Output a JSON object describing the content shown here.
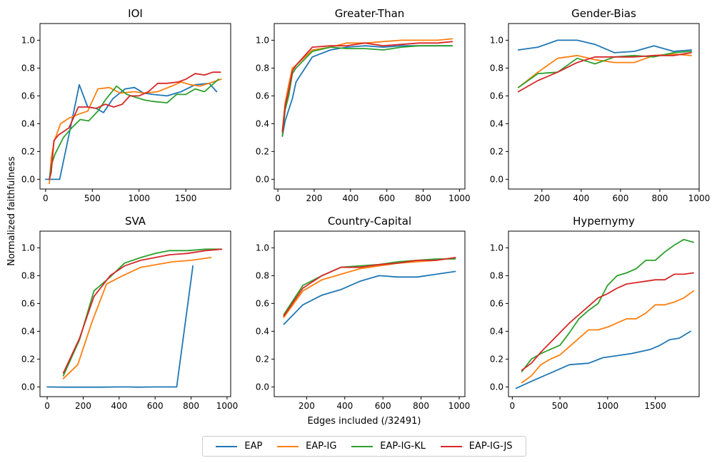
{
  "figure": {
    "ylabel": "Normalized faithfulness",
    "xlabel": "Edges included (/32491)"
  },
  "colors": {
    "EAP": "#1f77b4",
    "EAP-IG": "#ff7f0e",
    "EAP-IG-KL": "#2ca02c",
    "EAP-IG-JS": "#d62728"
  },
  "legend": [
    {
      "name": "EAP",
      "color": "#1f77b4"
    },
    {
      "name": "EAP-IG",
      "color": "#ff7f0e"
    },
    {
      "name": "EAP-IG-KL",
      "color": "#2ca02c"
    },
    {
      "name": "EAP-IG-JS",
      "color": "#d62728"
    }
  ],
  "chart_data": [
    {
      "type": "line",
      "title": "IOI",
      "xlim": [
        -60,
        1980
      ],
      "ylim": [
        -0.07,
        1.12
      ],
      "xticks": [
        0,
        500,
        1000,
        1500
      ],
      "yticks": [
        0.0,
        0.2,
        0.4,
        0.6,
        0.8,
        1.0
      ],
      "xticklabels": [
        "0",
        "500",
        "1000",
        "1500"
      ],
      "yticklabels": [
        "0.0",
        "0.2",
        "0.4",
        "0.6",
        "0.8",
        "1.0"
      ],
      "series": [
        {
          "name": "EAP",
          "x": [
            0,
            40,
            80,
            150,
            250,
            360,
            450,
            540,
            620,
            720,
            850,
            950,
            1050,
            1150,
            1300,
            1450,
            1600,
            1750,
            1830
          ],
          "y": [
            0.0,
            0.0,
            0.0,
            0.0,
            0.32,
            0.68,
            0.52,
            0.51,
            0.48,
            0.58,
            0.65,
            0.66,
            0.62,
            0.61,
            0.6,
            0.63,
            0.68,
            0.69,
            0.63
          ]
        },
        {
          "name": "EAP-IG",
          "x": [
            40,
            60,
            90,
            160,
            250,
            360,
            450,
            560,
            680,
            800,
            950,
            1050,
            1200,
            1350,
            1450,
            1550,
            1650,
            1750,
            1880
          ],
          "y": [
            -0.03,
            0.15,
            0.27,
            0.4,
            0.44,
            0.47,
            0.49,
            0.65,
            0.66,
            0.62,
            0.63,
            0.62,
            0.63,
            0.67,
            0.7,
            0.68,
            0.67,
            0.69,
            0.72
          ]
        },
        {
          "name": "EAP-IG-KL",
          "x": [
            40,
            60,
            100,
            190,
            280,
            370,
            460,
            560,
            650,
            760,
            870,
            960,
            1060,
            1150,
            1300,
            1400,
            1500,
            1600,
            1700,
            1850
          ],
          "y": [
            0.0,
            0.1,
            0.18,
            0.3,
            0.37,
            0.43,
            0.42,
            0.49,
            0.58,
            0.67,
            0.61,
            0.59,
            0.57,
            0.56,
            0.55,
            0.61,
            0.61,
            0.65,
            0.63,
            0.72
          ]
        },
        {
          "name": "EAP-IG-JS",
          "x": [
            40,
            60,
            90,
            140,
            250,
            350,
            450,
            540,
            640,
            730,
            820,
            900,
            1000,
            1100,
            1200,
            1300,
            1420,
            1500,
            1600,
            1700,
            1790,
            1870
          ],
          "y": [
            0.0,
            0.05,
            0.28,
            0.32,
            0.37,
            0.52,
            0.52,
            0.51,
            0.54,
            0.52,
            0.54,
            0.6,
            0.6,
            0.63,
            0.69,
            0.69,
            0.7,
            0.72,
            0.76,
            0.75,
            0.77,
            0.77
          ]
        }
      ]
    },
    {
      "type": "line",
      "title": "Greater-Than",
      "xlim": [
        -20,
        1030
      ],
      "ylim": [
        -0.07,
        1.12
      ],
      "xticks": [
        0,
        200,
        400,
        600,
        800,
        1000
      ],
      "yticks": [
        0.0,
        0.2,
        0.4,
        0.6,
        0.8,
        1.0
      ],
      "xticklabels": [
        "0",
        "200",
        "400",
        "600",
        "800",
        "1000"
      ],
      "yticklabels": [
        "0.0",
        "0.2",
        "0.4",
        "0.6",
        "0.8",
        "1.0"
      ],
      "series": [
        {
          "name": "EAP",
          "x": [
            25,
            40,
            60,
            80,
            100,
            190,
            290,
            380,
            480,
            580,
            680,
            780,
            880,
            960
          ],
          "y": [
            0.31,
            0.42,
            0.5,
            0.58,
            0.7,
            0.88,
            0.93,
            0.95,
            0.96,
            0.95,
            0.96,
            0.96,
            0.96,
            0.96
          ]
        },
        {
          "name": "EAP-IG",
          "x": [
            25,
            40,
            60,
            80,
            100,
            190,
            290,
            380,
            480,
            580,
            680,
            780,
            880,
            960
          ],
          "y": [
            0.35,
            0.55,
            0.68,
            0.8,
            0.82,
            0.93,
            0.95,
            0.98,
            0.98,
            0.99,
            1.0,
            1.0,
            1.0,
            1.01
          ]
        },
        {
          "name": "EAP-IG-KL",
          "x": [
            25,
            40,
            60,
            80,
            100,
            190,
            290,
            380,
            480,
            580,
            680,
            780,
            880,
            960
          ],
          "y": [
            0.31,
            0.5,
            0.6,
            0.76,
            0.8,
            0.92,
            0.95,
            0.94,
            0.94,
            0.93,
            0.95,
            0.96,
            0.96,
            0.96
          ]
        },
        {
          "name": "EAP-IG-JS",
          "x": [
            25,
            40,
            60,
            80,
            100,
            190,
            290,
            380,
            480,
            580,
            680,
            780,
            880,
            960
          ],
          "y": [
            0.34,
            0.53,
            0.64,
            0.78,
            0.82,
            0.95,
            0.96,
            0.96,
            0.98,
            0.96,
            0.97,
            0.98,
            0.98,
            0.99
          ]
        }
      ]
    },
    {
      "type": "line",
      "title": "Gender-Bias",
      "xlim": [
        30,
        1000
      ],
      "ylim": [
        -0.07,
        1.12
      ],
      "xticks": [
        200,
        400,
        600,
        800,
        1000
      ],
      "yticks": [
        0.0,
        0.2,
        0.4,
        0.6,
        0.8,
        1.0
      ],
      "xticklabels": [
        "200",
        "400",
        "600",
        "800",
        "1000"
      ],
      "yticklabels": [
        "0.0",
        "0.2",
        "0.4",
        "0.6",
        "0.8",
        "1.0"
      ],
      "series": [
        {
          "name": "EAP",
          "x": [
            80,
            180,
            280,
            380,
            470,
            570,
            670,
            770,
            870,
            960
          ],
          "y": [
            0.93,
            0.95,
            1.0,
            1.0,
            0.97,
            0.91,
            0.92,
            0.96,
            0.92,
            0.93
          ]
        },
        {
          "name": "EAP-IG",
          "x": [
            80,
            180,
            280,
            380,
            470,
            570,
            670,
            770,
            870,
            960
          ],
          "y": [
            0.66,
            0.77,
            0.87,
            0.89,
            0.86,
            0.84,
            0.84,
            0.89,
            0.9,
            0.89
          ]
        },
        {
          "name": "EAP-IG-KL",
          "x": [
            80,
            180,
            280,
            380,
            470,
            570,
            670,
            770,
            870,
            960
          ],
          "y": [
            0.66,
            0.76,
            0.77,
            0.87,
            0.83,
            0.88,
            0.89,
            0.88,
            0.91,
            0.92
          ]
        },
        {
          "name": "EAP-IG-JS",
          "x": [
            80,
            180,
            280,
            380,
            470,
            570,
            670,
            770,
            870,
            960
          ],
          "y": [
            0.63,
            0.71,
            0.77,
            0.84,
            0.88,
            0.88,
            0.88,
            0.89,
            0.89,
            0.91
          ]
        }
      ]
    },
    {
      "type": "line",
      "title": "SVA",
      "xlim": [
        -40,
        1020
      ],
      "ylim": [
        -0.07,
        1.12
      ],
      "xticks": [
        0,
        200,
        400,
        600,
        800,
        1000
      ],
      "yticks": [
        0.0,
        0.2,
        0.4,
        0.6,
        0.8,
        1.0
      ],
      "xticklabels": [
        "0",
        "200",
        "400",
        "600",
        "800",
        "1000"
      ],
      "yticklabels": [
        "0.0",
        "0.2",
        "0.4",
        "0.6",
        "0.8",
        "1.0"
      ],
      "series": [
        {
          "name": "EAP",
          "x": [
            0,
            100,
            200,
            300,
            400,
            450,
            500,
            600,
            720,
            810
          ],
          "y": [
            0.0,
            -0.002,
            -0.002,
            -0.002,
            0.0,
            0.0,
            -0.002,
            0.0,
            0.0,
            0.87
          ]
        },
        {
          "name": "EAP-IG",
          "x": [
            90,
            170,
            250,
            330,
            420,
            520,
            610,
            700,
            800,
            910
          ],
          "y": [
            0.06,
            0.16,
            0.47,
            0.74,
            0.8,
            0.86,
            0.88,
            0.9,
            0.91,
            0.93
          ]
        },
        {
          "name": "EAP-IG-KL",
          "x": [
            90,
            180,
            260,
            350,
            430,
            520,
            600,
            680,
            780,
            880,
            970
          ],
          "y": [
            0.08,
            0.34,
            0.69,
            0.79,
            0.89,
            0.93,
            0.96,
            0.98,
            0.98,
            0.99,
            0.99
          ]
        },
        {
          "name": "EAP-IG-JS",
          "x": [
            90,
            180,
            260,
            350,
            430,
            520,
            600,
            680,
            780,
            880,
            970
          ],
          "y": [
            0.1,
            0.35,
            0.65,
            0.8,
            0.87,
            0.91,
            0.93,
            0.95,
            0.96,
            0.98,
            0.99
          ]
        }
      ]
    },
    {
      "type": "line",
      "title": "Country-Capital",
      "xlim": [
        30,
        1030
      ],
      "ylim": [
        -0.07,
        1.12
      ],
      "xticks": [
        200,
        400,
        600,
        800,
        1000
      ],
      "yticks": [
        0.0,
        0.2,
        0.4,
        0.6,
        0.8,
        1.0
      ],
      "xticklabels": [
        "200",
        "400",
        "600",
        "800",
        "1000"
      ],
      "yticklabels": [
        "0.0",
        "0.2",
        "0.4",
        "0.6",
        "0.8",
        "1.0"
      ],
      "series": [
        {
          "name": "EAP",
          "x": [
            80,
            180,
            280,
            380,
            480,
            580,
            680,
            780,
            880,
            980
          ],
          "y": [
            0.45,
            0.59,
            0.66,
            0.7,
            0.76,
            0.8,
            0.79,
            0.79,
            0.81,
            0.83
          ]
        },
        {
          "name": "EAP-IG",
          "x": [
            80,
            180,
            280,
            380,
            480,
            580,
            680,
            780,
            880,
            980
          ],
          "y": [
            0.5,
            0.69,
            0.77,
            0.81,
            0.85,
            0.87,
            0.89,
            0.9,
            0.91,
            0.93
          ]
        },
        {
          "name": "EAP-IG-KL",
          "x": [
            80,
            180,
            280,
            380,
            480,
            580,
            680,
            780,
            880,
            980
          ],
          "y": [
            0.52,
            0.73,
            0.8,
            0.86,
            0.87,
            0.88,
            0.9,
            0.91,
            0.92,
            0.92
          ]
        },
        {
          "name": "EAP-IG-JS",
          "x": [
            80,
            180,
            280,
            380,
            480,
            580,
            680,
            780,
            880,
            980
          ],
          "y": [
            0.51,
            0.71,
            0.8,
            0.86,
            0.86,
            0.88,
            0.89,
            0.91,
            0.91,
            0.93
          ]
        }
      ]
    },
    {
      "type": "line",
      "title": "Hypernymy",
      "xlim": [
        -40,
        1960
      ],
      "ylim": [
        -0.07,
        1.12
      ],
      "xticks": [
        0,
        500,
        1000,
        1500
      ],
      "yticks": [
        0.0,
        0.2,
        0.4,
        0.6,
        0.8,
        1.0
      ],
      "xticklabels": [
        "0",
        "500",
        "1000",
        "1500"
      ],
      "yticklabels": [
        "0.0",
        "0.2",
        "0.4",
        "0.6",
        "0.8",
        "1.0"
      ],
      "series": [
        {
          "name": "EAP",
          "x": [
            40,
            200,
            300,
            400,
            600,
            800,
            950,
            1050,
            1250,
            1450,
            1550,
            1650,
            1750,
            1870
          ],
          "y": [
            -0.01,
            0.04,
            0.07,
            0.1,
            0.16,
            0.17,
            0.21,
            0.22,
            0.24,
            0.27,
            0.3,
            0.34,
            0.35,
            0.4
          ]
        },
        {
          "name": "EAP-IG",
          "x": [
            100,
            200,
            300,
            400,
            500,
            600,
            700,
            800,
            900,
            1000,
            1100,
            1200,
            1300,
            1400,
            1500,
            1600,
            1700,
            1800,
            1900
          ],
          "y": [
            0.03,
            0.08,
            0.16,
            0.2,
            0.23,
            0.29,
            0.35,
            0.41,
            0.41,
            0.43,
            0.46,
            0.49,
            0.49,
            0.53,
            0.59,
            0.59,
            0.61,
            0.64,
            0.69
          ]
        },
        {
          "name": "EAP-IG-KL",
          "x": [
            100,
            200,
            300,
            400,
            500,
            600,
            700,
            800,
            900,
            1000,
            1100,
            1200,
            1300,
            1400,
            1500,
            1600,
            1700,
            1800,
            1900
          ],
          "y": [
            0.11,
            0.2,
            0.24,
            0.27,
            0.3,
            0.39,
            0.49,
            0.55,
            0.6,
            0.73,
            0.8,
            0.82,
            0.85,
            0.91,
            0.91,
            0.97,
            1.02,
            1.06,
            1.04
          ]
        },
        {
          "name": "EAP-IG-JS",
          "x": [
            100,
            200,
            300,
            400,
            500,
            600,
            700,
            800,
            900,
            1000,
            1100,
            1200,
            1300,
            1400,
            1500,
            1600,
            1700,
            1800,
            1900
          ],
          "y": [
            0.12,
            0.17,
            0.25,
            0.32,
            0.39,
            0.46,
            0.52,
            0.58,
            0.64,
            0.67,
            0.71,
            0.74,
            0.75,
            0.76,
            0.77,
            0.77,
            0.81,
            0.81,
            0.82
          ]
        }
      ]
    }
  ]
}
